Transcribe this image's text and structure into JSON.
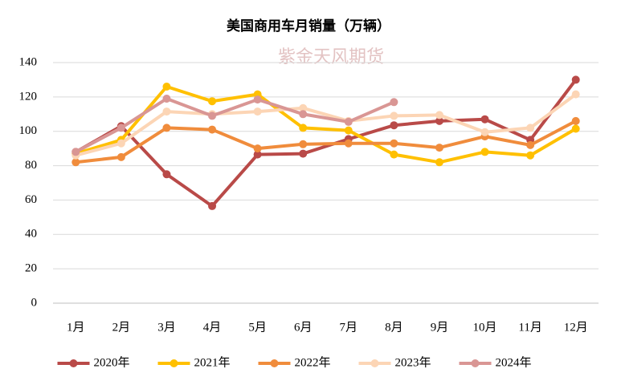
{
  "chart_data": {
    "type": "line",
    "title": "美国商用车月销量（万辆）",
    "watermark": "紫金天风期货",
    "categories": [
      "1月",
      "2月",
      "3月",
      "4月",
      "5月",
      "6月",
      "7月",
      "8月",
      "9月",
      "10月",
      "11月",
      "12月"
    ],
    "series": [
      {
        "name": "2020年",
        "color": "#b94a48",
        "values": [
          88,
          103,
          75,
          56.5,
          86.5,
          87,
          95.5,
          103.5,
          106,
          107,
          95,
          130
        ]
      },
      {
        "name": "2021年",
        "color": "#ffc000",
        "values": [
          87,
          95,
          126,
          117.5,
          121.5,
          102,
          100.5,
          86.5,
          82,
          88,
          86,
          101.5
        ]
      },
      {
        "name": "2022年",
        "color": "#f08c3c",
        "values": [
          82,
          85,
          102,
          101,
          90,
          92.5,
          93,
          93,
          90.5,
          97,
          92,
          106
        ]
      },
      {
        "name": "2023年",
        "color": "#fcd5b5",
        "values": [
          86,
          93,
          111.5,
          110,
          111.5,
          113.5,
          106,
          109,
          109.5,
          99.5,
          102,
          121.5
        ]
      },
      {
        "name": "2024年",
        "color": "#d99694",
        "values": [
          88,
          102,
          119,
          109,
          118.5,
          110,
          105.5,
          117,
          null,
          null,
          null,
          null
        ]
      }
    ],
    "ylim": [
      0,
      140
    ],
    "yticks": [
      0,
      20,
      40,
      60,
      80,
      100,
      120,
      140
    ],
    "grid": true,
    "legend": "bottom"
  }
}
